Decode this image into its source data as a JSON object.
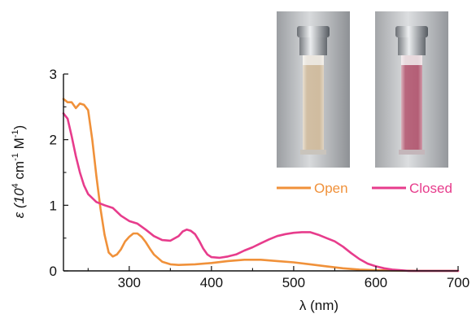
{
  "chart_data": {
    "type": "line",
    "xlabel": "λ (nm)",
    "ylabel_parts": [
      "ε (10",
      "4",
      " cm",
      "-1",
      " M",
      "-1",
      ")"
    ],
    "xlim": [
      220,
      700
    ],
    "ylim": [
      0,
      3
    ],
    "x_ticks": [
      300,
      400,
      500,
      600,
      700
    ],
    "x_tick_labels": [
      "300",
      "400",
      "500",
      "600",
      "700"
    ],
    "y_ticks": [
      0,
      1,
      2,
      3
    ],
    "y_tick_labels": [
      "0",
      "1",
      "2",
      "3"
    ],
    "grid": false,
    "legend_position": "top-right",
    "series": [
      {
        "name": "Open",
        "color": "#f0913a",
        "x": [
          220,
          225,
          230,
          235,
          240,
          245,
          250,
          255,
          260,
          265,
          270,
          275,
          280,
          285,
          290,
          295,
          300,
          305,
          310,
          315,
          320,
          325,
          330,
          340,
          350,
          360,
          380,
          400,
          420,
          440,
          460,
          480,
          500,
          520,
          540,
          560,
          580,
          600,
          650,
          700
        ],
        "y": [
          2.62,
          2.57,
          2.57,
          2.48,
          2.55,
          2.53,
          2.45,
          2.0,
          1.45,
          0.95,
          0.55,
          0.28,
          0.22,
          0.25,
          0.33,
          0.45,
          0.52,
          0.57,
          0.57,
          0.52,
          0.44,
          0.34,
          0.25,
          0.14,
          0.1,
          0.09,
          0.1,
          0.12,
          0.15,
          0.17,
          0.17,
          0.15,
          0.13,
          0.1,
          0.07,
          0.04,
          0.02,
          0.01,
          0.0,
          0.0
        ]
      },
      {
        "name": "Closed",
        "color": "#e73c8c",
        "x": [
          220,
          225,
          230,
          235,
          240,
          245,
          250,
          260,
          270,
          280,
          290,
          300,
          310,
          320,
          330,
          340,
          350,
          360,
          365,
          370,
          375,
          380,
          385,
          390,
          395,
          400,
          410,
          420,
          430,
          440,
          450,
          460,
          470,
          480,
          490,
          500,
          510,
          520,
          530,
          540,
          550,
          560,
          570,
          580,
          590,
          600,
          610,
          620,
          630,
          640,
          650,
          660,
          680,
          700
        ],
        "y": [
          2.4,
          2.32,
          2.05,
          1.75,
          1.5,
          1.3,
          1.17,
          1.05,
          1.0,
          0.96,
          0.84,
          0.76,
          0.72,
          0.63,
          0.53,
          0.47,
          0.46,
          0.53,
          0.6,
          0.63,
          0.61,
          0.56,
          0.46,
          0.34,
          0.25,
          0.21,
          0.2,
          0.22,
          0.25,
          0.31,
          0.36,
          0.42,
          0.48,
          0.53,
          0.56,
          0.58,
          0.59,
          0.59,
          0.55,
          0.5,
          0.45,
          0.37,
          0.27,
          0.18,
          0.11,
          0.07,
          0.04,
          0.02,
          0.01,
          0.0,
          0.0,
          0.0,
          0.0,
          0.0
        ]
      }
    ]
  },
  "photos": {
    "open_liquid_color": "#cdb89a",
    "closed_liquid_color": "#b0566f"
  }
}
